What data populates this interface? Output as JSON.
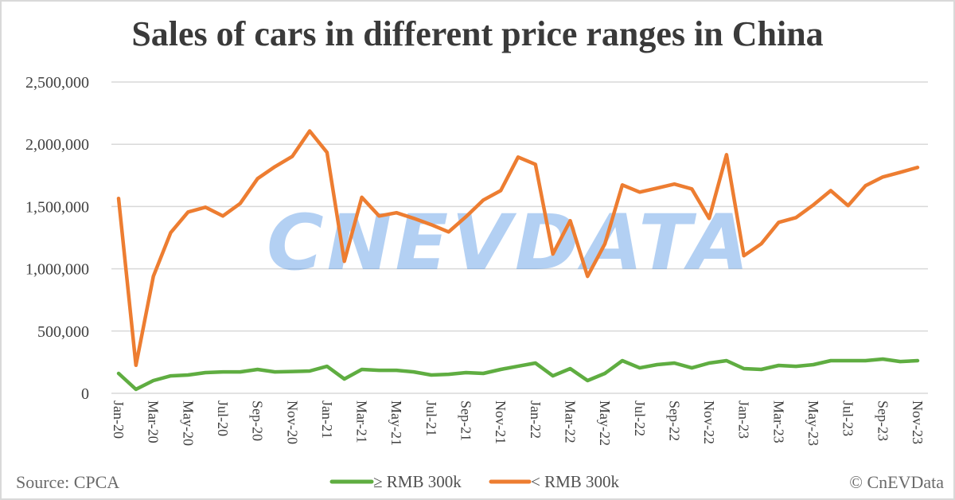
{
  "chart_data": {
    "type": "line",
    "title": "Sales of cars in different price ranges in China",
    "xlabel": "",
    "ylabel": "",
    "ylim": [
      0,
      2500000
    ],
    "yticks": [
      0,
      500000,
      1000000,
      1500000,
      2000000,
      2500000
    ],
    "ytick_labels": [
      "0",
      "500,000",
      "1,000,000",
      "1,500,000",
      "2,000,000",
      "2,500,000"
    ],
    "grid": true,
    "legend_position": "bottom",
    "x": [
      "Jan-20",
      "Feb-20",
      "Mar-20",
      "Apr-20",
      "May-20",
      "Jun-20",
      "Jul-20",
      "Aug-20",
      "Sep-20",
      "Oct-20",
      "Nov-20",
      "Dec-20",
      "Jan-21",
      "Feb-21",
      "Mar-21",
      "Apr-21",
      "May-21",
      "Jun-21",
      "Jul-21",
      "Aug-21",
      "Sep-21",
      "Oct-21",
      "Nov-21",
      "Dec-21",
      "Jan-22",
      "Feb-22",
      "Mar-22",
      "Apr-22",
      "May-22",
      "Jun-22",
      "Jul-22",
      "Aug-22",
      "Sep-22",
      "Oct-22",
      "Nov-22",
      "Dec-22",
      "Jan-23",
      "Feb-23",
      "Mar-23",
      "Apr-23",
      "May-23",
      "Jun-23",
      "Jul-23",
      "Aug-23",
      "Sep-23",
      "Oct-23",
      "Nov-23"
    ],
    "xtick_labels": [
      "Jan-20",
      "Mar-20",
      "May-20",
      "Jul-20",
      "Sep-20",
      "Nov-20",
      "Jan-21",
      "Mar-21",
      "May-21",
      "Jul-21",
      "Sep-21",
      "Nov-21",
      "Jan-22",
      "Mar-22",
      "May-22",
      "Jul-22",
      "Sep-22",
      "Nov-22",
      "Jan-23",
      "Mar-23",
      "May-23",
      "Jul-23",
      "Sep-23",
      "Nov-23"
    ],
    "series": [
      {
        "name": "≥ RMB 300k",
        "color": "#5fad41",
        "values": [
          160000,
          32000,
          102000,
          140000,
          147000,
          166000,
          172000,
          172000,
          192000,
          172000,
          175000,
          179000,
          217000,
          115000,
          192000,
          185000,
          185000,
          172000,
          147000,
          153000,
          166000,
          160000,
          192000,
          218000,
          243000,
          140000,
          198000,
          102000,
          160000,
          262000,
          204000,
          230000,
          243000,
          204000,
          243000,
          262000,
          198000,
          192000,
          224000,
          217000,
          230000,
          262000,
          262000,
          262000,
          275000,
          255000,
          262000
        ]
      },
      {
        "name": "< RMB 300k",
        "color": "#ed7d31",
        "values": [
          1565000,
          225000,
          939000,
          1290000,
          1456000,
          1494000,
          1424000,
          1524000,
          1724000,
          1820000,
          1903000,
          2107000,
          1935000,
          1060000,
          1574000,
          1424000,
          1450000,
          1405000,
          1354000,
          1296000,
          1418000,
          1552000,
          1628000,
          1897000,
          1839000,
          1118000,
          1386000,
          939000,
          1201000,
          1673000,
          1616000,
          1648000,
          1680000,
          1641000,
          1405000,
          1916000,
          1105000,
          1201000,
          1373000,
          1411000,
          1513000,
          1628000,
          1507000,
          1667000,
          1737000,
          1775000,
          1814000
        ]
      }
    ]
  },
  "footer": {
    "source": "Source: CPCA",
    "copyright": "© CnEVData"
  },
  "watermark": "CNEVDATA"
}
